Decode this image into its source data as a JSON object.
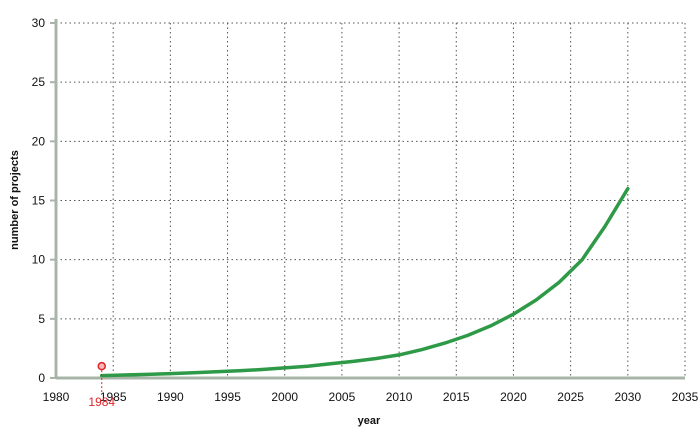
{
  "chart_data": {
    "type": "line",
    "title": "",
    "xlabel": "year",
    "ylabel": "number of projects",
    "xlim": [
      1980,
      2035
    ],
    "ylim": [
      0,
      30
    ],
    "x_ticks": [
      1980,
      1985,
      1990,
      1995,
      2000,
      2005,
      2010,
      2015,
      2020,
      2025,
      2030,
      2035
    ],
    "y_ticks": [
      0,
      5,
      10,
      15,
      20,
      25,
      30
    ],
    "grid": true,
    "series": [
      {
        "color": "#2e9a47",
        "points": [
          [
            1984,
            0.2
          ],
          [
            1986,
            0.25
          ],
          [
            1988,
            0.3
          ],
          [
            1990,
            0.37
          ],
          [
            1992,
            0.44
          ],
          [
            1994,
            0.52
          ],
          [
            1996,
            0.61
          ],
          [
            1998,
            0.72
          ],
          [
            2000,
            0.85
          ],
          [
            2002,
            1.0
          ],
          [
            2004,
            1.2
          ],
          [
            2006,
            1.4
          ],
          [
            2008,
            1.65
          ],
          [
            2010,
            1.95
          ],
          [
            2012,
            2.4
          ],
          [
            2014,
            2.95
          ],
          [
            2016,
            3.6
          ],
          [
            2018,
            4.4
          ],
          [
            2020,
            5.4
          ],
          [
            2022,
            6.6
          ],
          [
            2024,
            8.1
          ],
          [
            2026,
            10.0
          ],
          [
            2028,
            12.8
          ],
          [
            2030,
            16.0
          ]
        ]
      }
    ],
    "annotation": {
      "label": "1984",
      "x": 1984,
      "y": 1.0,
      "color": "#e0242a"
    },
    "axis_color": "#a8b4a8",
    "grid_color": "#555555"
  }
}
